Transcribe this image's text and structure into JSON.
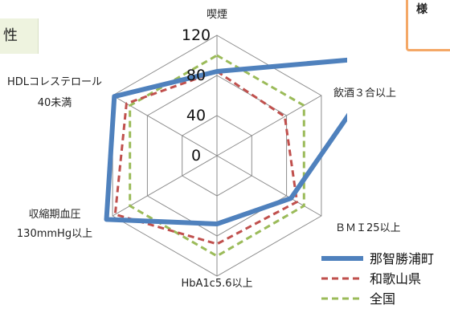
{
  "side_tab_label": "性",
  "corner_box_label": "様",
  "chart_data": {
    "type": "radar",
    "axes": [
      {
        "line1": "喫煙",
        "line2": ""
      },
      {
        "line1": "飲酒３合以上",
        "line2": ""
      },
      {
        "line1": "ＢＭＩ25以上",
        "line2": ""
      },
      {
        "line1": "HbA1c5.6以上",
        "line2": ""
      },
      {
        "line1": "収縮期血圧",
        "line2": "130mmHg以上"
      },
      {
        "line1": "HDLコレステロール",
        "line2": "40未満"
      }
    ],
    "ticks": [
      0,
      40,
      80,
      120
    ],
    "rmax": 120,
    "grid": true,
    "legend_position": "bottom-right",
    "series": [
      {
        "name": "那智勝浦町",
        "color": "#4f81bd",
        "style": "solid",
        "values": [
          84,
          198,
          85,
          68,
          127,
          118
        ]
      },
      {
        "name": "和歌山県",
        "color": "#c0504d",
        "style": "dashed",
        "values": [
          84,
          78,
          92,
          88,
          117,
          104
        ]
      },
      {
        "name": "全国",
        "color": "#9bbb59",
        "style": "dashed",
        "values": [
          100,
          100,
          100,
          100,
          100,
          100
        ]
      }
    ]
  }
}
